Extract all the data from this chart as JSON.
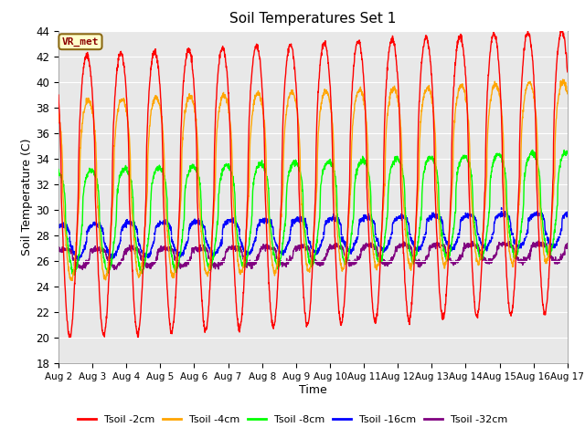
{
  "title": "Soil Temperatures Set 1",
  "xlabel": "Time",
  "ylabel": "Soil Temperature (C)",
  "ylim": [
    18,
    44
  ],
  "xlim_days": [
    2,
    17
  ],
  "station_label": "VR_met",
  "legend_labels": [
    "Tsoil -2cm",
    "Tsoil -4cm",
    "Tsoil -8cm",
    "Tsoil -16cm",
    "Tsoil -32cm"
  ],
  "line_colors": [
    "red",
    "orange",
    "lime",
    "blue",
    "purple"
  ],
  "bg_color": "#e8e8e8",
  "yticks": [
    18,
    20,
    22,
    24,
    26,
    28,
    30,
    32,
    34,
    36,
    38,
    40,
    42,
    44
  ],
  "xtick_labels": [
    "Aug 2",
    "Aug 3",
    "Aug 4",
    "Aug 5",
    "Aug 6",
    "Aug 7",
    "Aug 8",
    "Aug 9",
    "Aug 10",
    "Aug 11",
    "Aug 12",
    "Aug 13",
    "Aug 14",
    "Aug 15",
    "Aug 16",
    "Aug 17"
  ],
  "mean_2cm": 31.0,
  "amp_2cm": 11.0,
  "peak_hour_2cm": 14.0,
  "mean_4cm": 31.5,
  "amp_4cm": 7.0,
  "peak_hour_4cm": 15.0,
  "mean_8cm": 29.0,
  "amp_8cm": 4.0,
  "peak_hour_8cm": 17.0,
  "mean_16cm": 27.5,
  "amp_16cm": 1.3,
  "peak_hour_16cm": 20.0,
  "mean_32cm": 26.2,
  "amp_32cm": 0.7,
  "peak_hour_32cm": 22.0
}
